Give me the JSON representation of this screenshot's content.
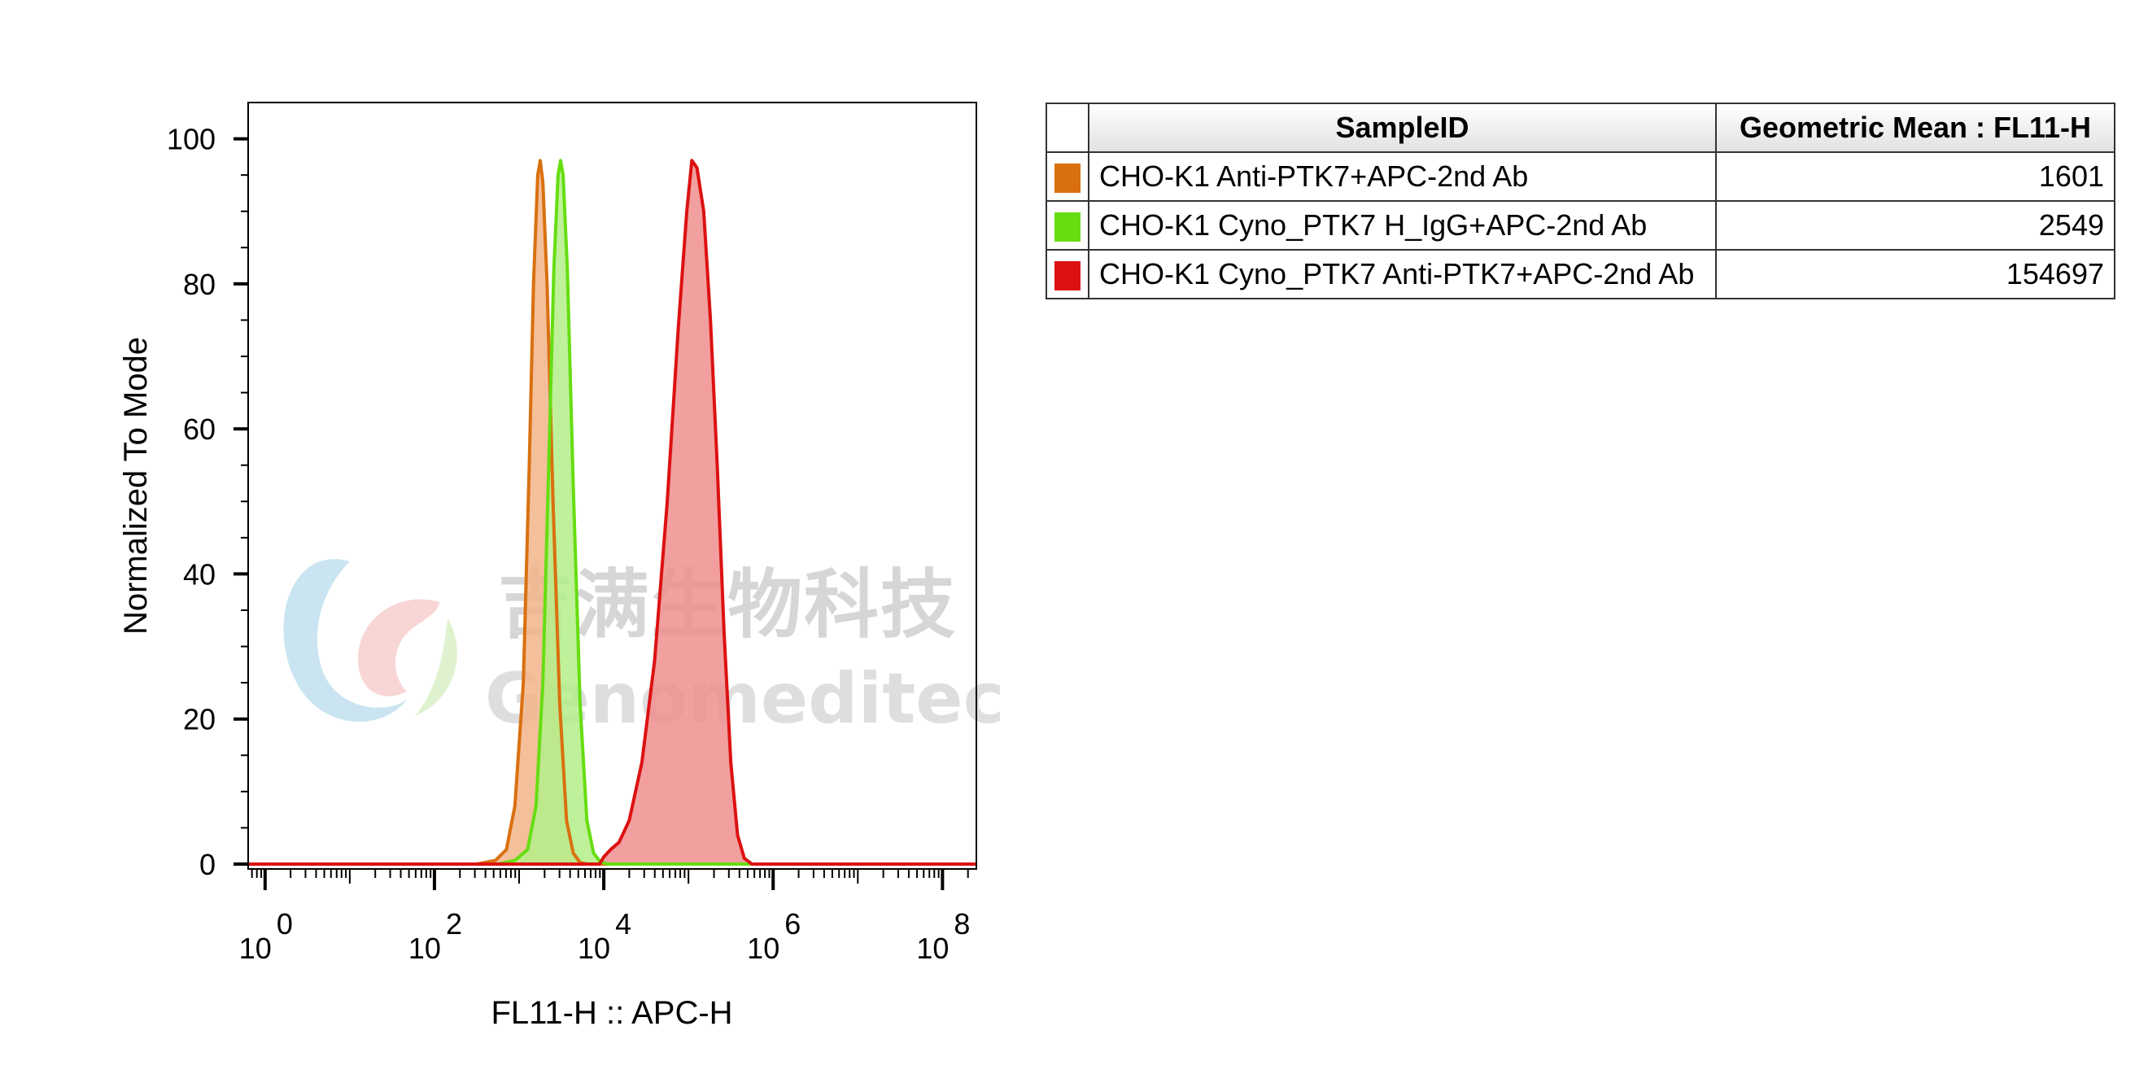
{
  "chart_data": {
    "type": "area",
    "xlabel": "FL11-H :: APC-H",
    "ylabel": "Normalized To Mode",
    "x_scale": "log",
    "xlim_exponent": [
      -0.2,
      8.4
    ],
    "x_ticks": [
      {
        "base": "10",
        "exp": "0",
        "exp_value": 0
      },
      {
        "base": "10",
        "exp": "2",
        "exp_value": 2
      },
      {
        "base": "10",
        "exp": "4",
        "exp_value": 4
      },
      {
        "base": "10",
        "exp": "6",
        "exp_value": 6
      },
      {
        "base": "10",
        "exp": "8",
        "exp_value": 8
      }
    ],
    "ylim": [
      0,
      105
    ],
    "y_ticks": [
      0,
      20,
      40,
      60,
      80,
      100
    ],
    "grid": false,
    "series": [
      {
        "name": "CHO-K1 Anti-PTK7+APC-2nd Ab",
        "color": "#d9700f",
        "fill": "#f2b48a",
        "points": [
          [
            -0.2,
            0
          ],
          [
            2.5,
            0
          ],
          [
            2.72,
            0.5
          ],
          [
            2.85,
            2
          ],
          [
            2.95,
            8
          ],
          [
            3.05,
            25
          ],
          [
            3.12,
            55
          ],
          [
            3.17,
            80
          ],
          [
            3.22,
            95
          ],
          [
            3.25,
            97
          ],
          [
            3.28,
            94
          ],
          [
            3.33,
            80
          ],
          [
            3.4,
            50
          ],
          [
            3.48,
            22
          ],
          [
            3.56,
            6
          ],
          [
            3.64,
            1.5
          ],
          [
            3.72,
            0.2
          ],
          [
            3.8,
            0
          ],
          [
            8.4,
            0
          ]
        ]
      },
      {
        "name": "CHO-K1 Cyno_PTK7 H_IgG+APC-2nd Ab",
        "color": "#66dd11",
        "fill": "#b3ee88",
        "points": [
          [
            -0.2,
            0
          ],
          [
            2.75,
            0
          ],
          [
            2.95,
            0.5
          ],
          [
            3.1,
            2
          ],
          [
            3.2,
            8
          ],
          [
            3.28,
            25
          ],
          [
            3.35,
            55
          ],
          [
            3.41,
            82
          ],
          [
            3.46,
            95
          ],
          [
            3.49,
            97
          ],
          [
            3.52,
            95
          ],
          [
            3.57,
            82
          ],
          [
            3.64,
            52
          ],
          [
            3.72,
            22
          ],
          [
            3.8,
            6
          ],
          [
            3.88,
            1.5
          ],
          [
            3.96,
            0.3
          ],
          [
            4.05,
            0
          ],
          [
            8.4,
            0
          ]
        ]
      },
      {
        "name": "CHO-K1 Cyno_PTK7 Anti-PTK7+APC-2nd Ab",
        "color": "#dd1111",
        "fill": "#ee8e8e",
        "points": [
          [
            -0.2,
            0
          ],
          [
            3.95,
            0
          ],
          [
            4.0,
            1
          ],
          [
            4.08,
            2
          ],
          [
            4.18,
            3
          ],
          [
            4.3,
            6
          ],
          [
            4.45,
            14
          ],
          [
            4.6,
            28
          ],
          [
            4.75,
            50
          ],
          [
            4.88,
            74
          ],
          [
            4.98,
            90
          ],
          [
            5.04,
            97
          ],
          [
            5.1,
            96
          ],
          [
            5.18,
            90
          ],
          [
            5.26,
            75
          ],
          [
            5.34,
            55
          ],
          [
            5.42,
            32
          ],
          [
            5.5,
            14
          ],
          [
            5.58,
            4
          ],
          [
            5.66,
            0.8
          ],
          [
            5.75,
            0
          ],
          [
            8.4,
            0
          ]
        ]
      }
    ]
  },
  "watermark": {
    "cn_text": "吉满生物科技",
    "en_text": "Genomeditech"
  },
  "table": {
    "headers": [
      "SampleID",
      "Geometric Mean : FL11-H"
    ],
    "rows": [
      {
        "swatch": "#d9700f",
        "sample": "CHO-K1 Anti-PTK7+APC-2nd Ab",
        "value": "1601"
      },
      {
        "swatch": "#66dd11",
        "sample": "CHO-K1 Cyno_PTK7 H_IgG+APC-2nd Ab",
        "value": "2549"
      },
      {
        "swatch": "#dd1111",
        "sample": "CHO-K1 Cyno_PTK7 Anti-PTK7+APC-2nd Ab",
        "value": "154697"
      }
    ]
  }
}
